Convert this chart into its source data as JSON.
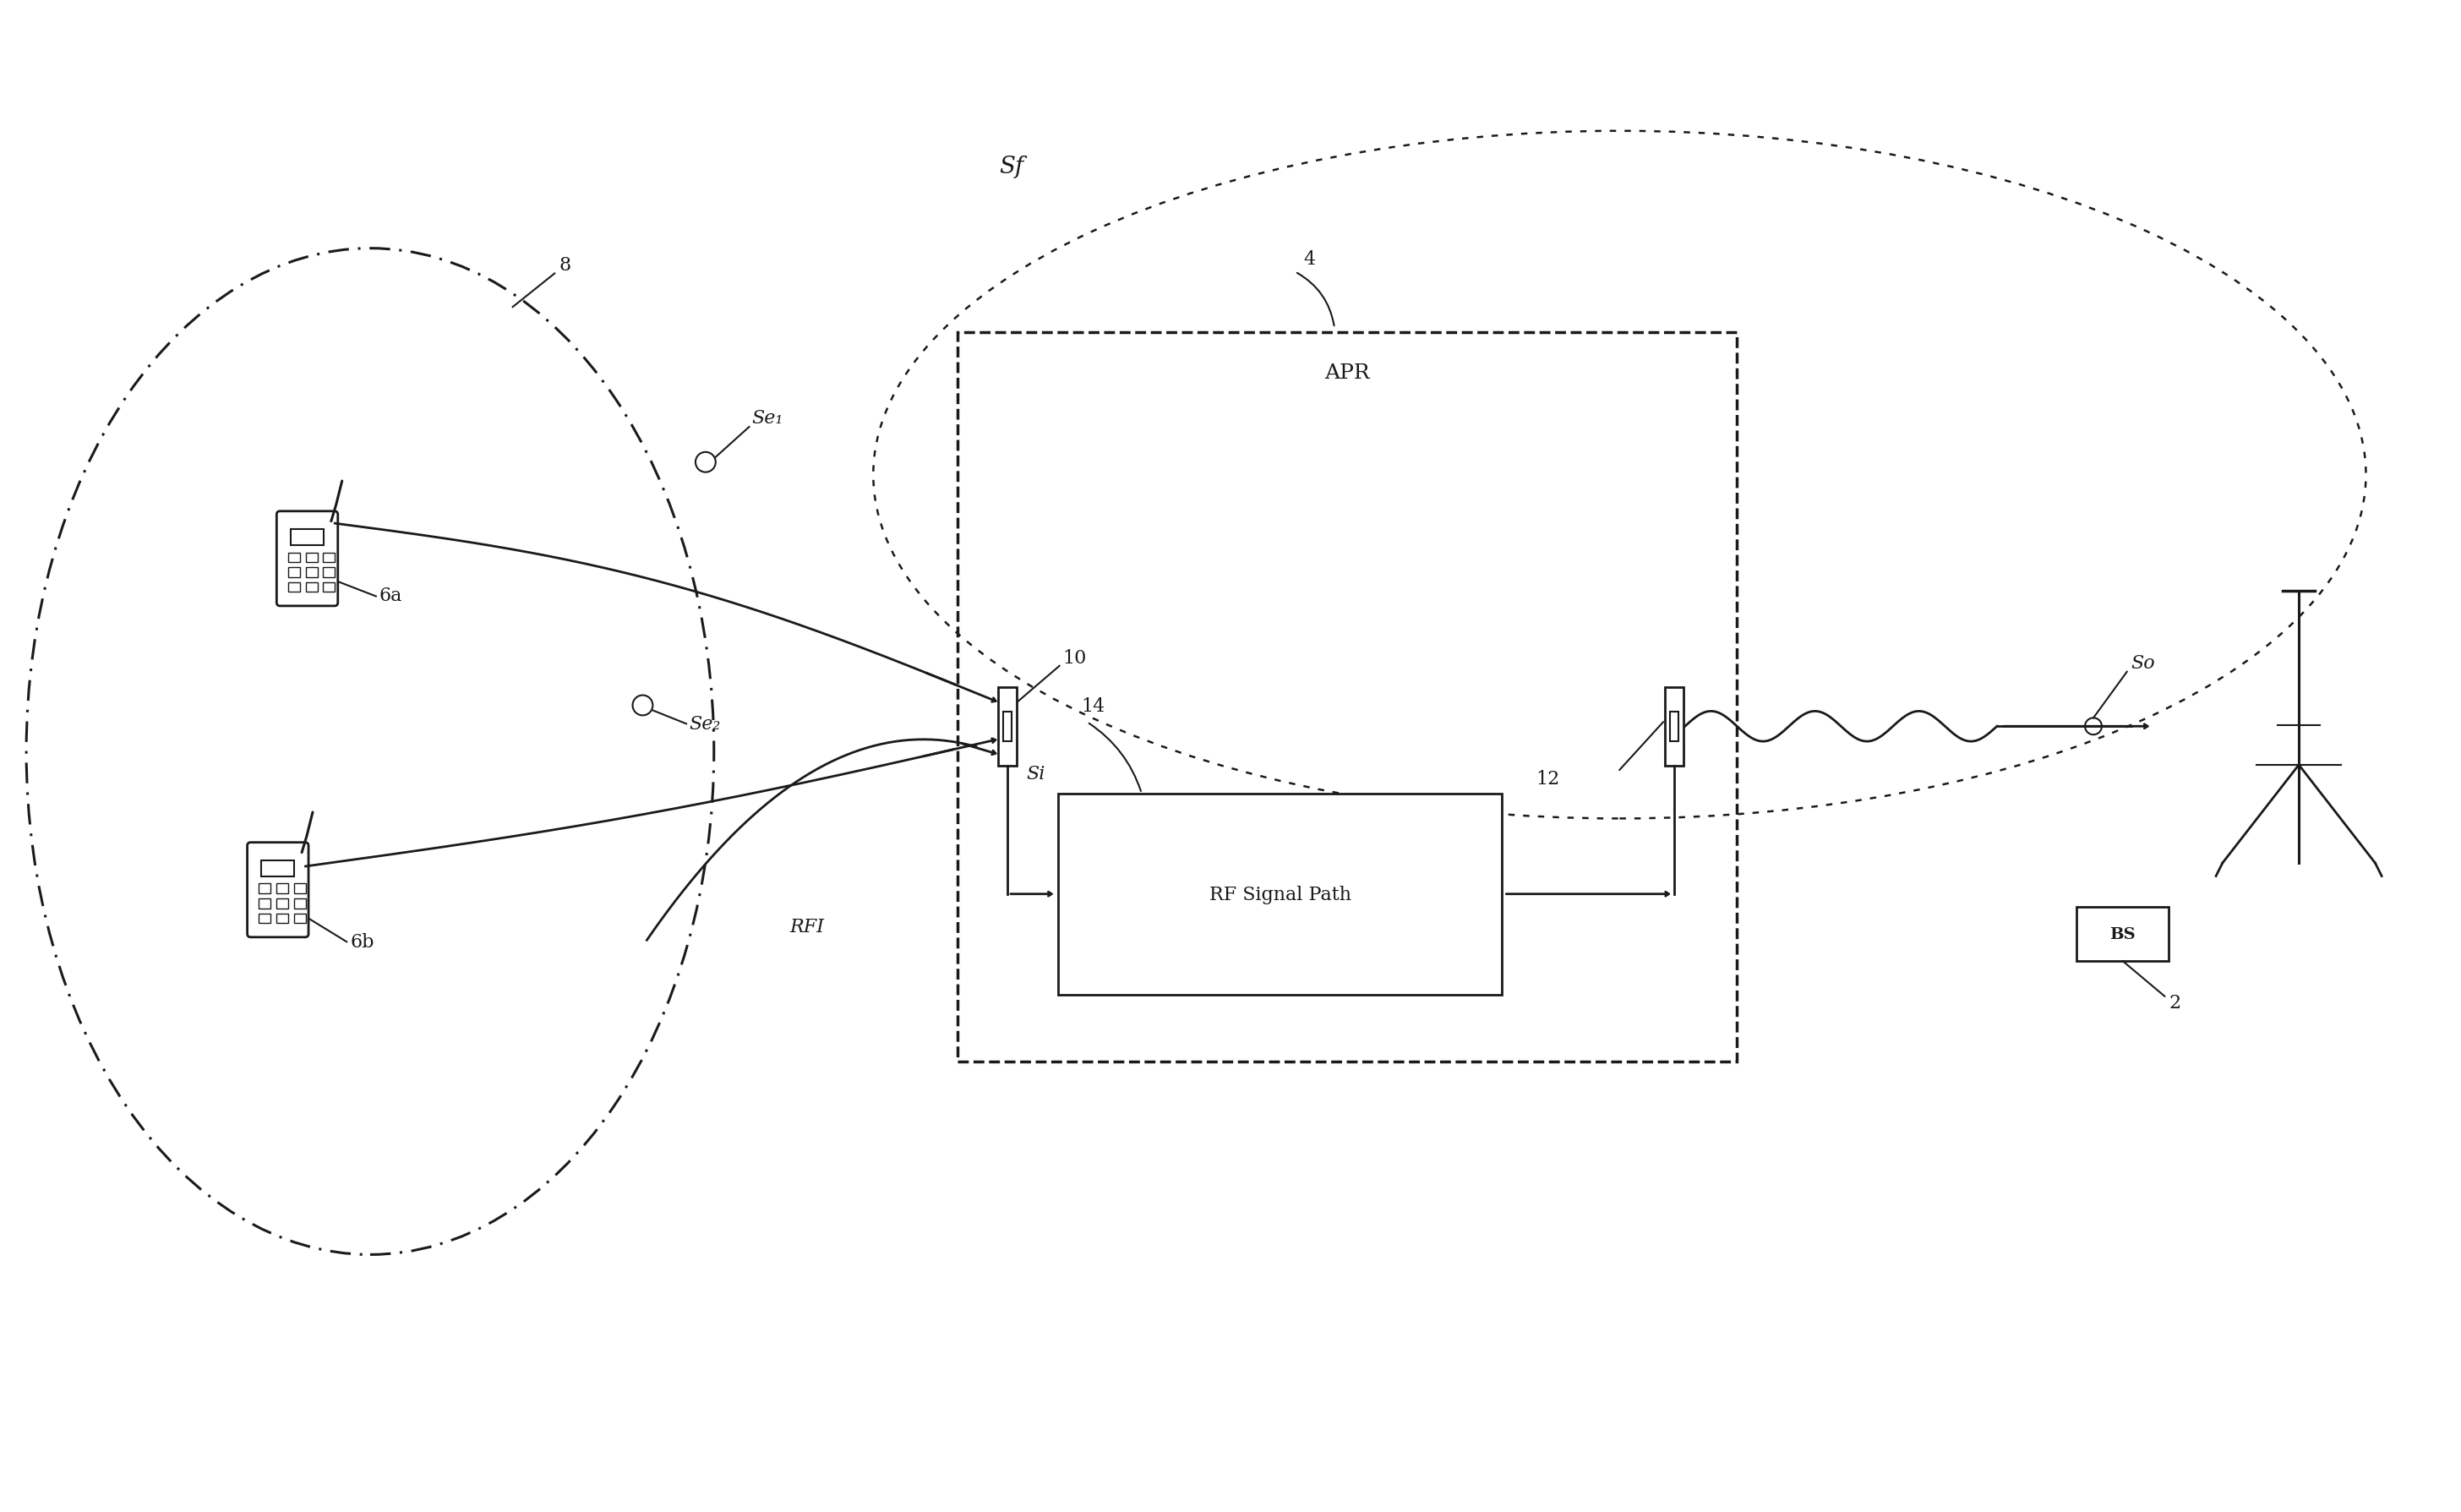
{
  "bg_color": "#ffffff",
  "lc": "#1a1a1a",
  "fig_w": 29.12,
  "fig_h": 17.9,
  "Se1": "Se₁",
  "Se2": "Se₂",
  "lbl_6a": "6a",
  "lbl_6b": "6b",
  "lbl_8": "8",
  "lbl_APR": "APR",
  "lbl_4": "4",
  "lbl_10": "10",
  "lbl_12": "12",
  "lbl_14": "14",
  "lbl_Si": "Si",
  "lbl_So": "So",
  "lbl_Sf": "Sf",
  "lbl_RF": "RF Signal Path",
  "lbl_RFI": "RFI",
  "lbl_BS": "BS",
  "lbl_2": "2"
}
